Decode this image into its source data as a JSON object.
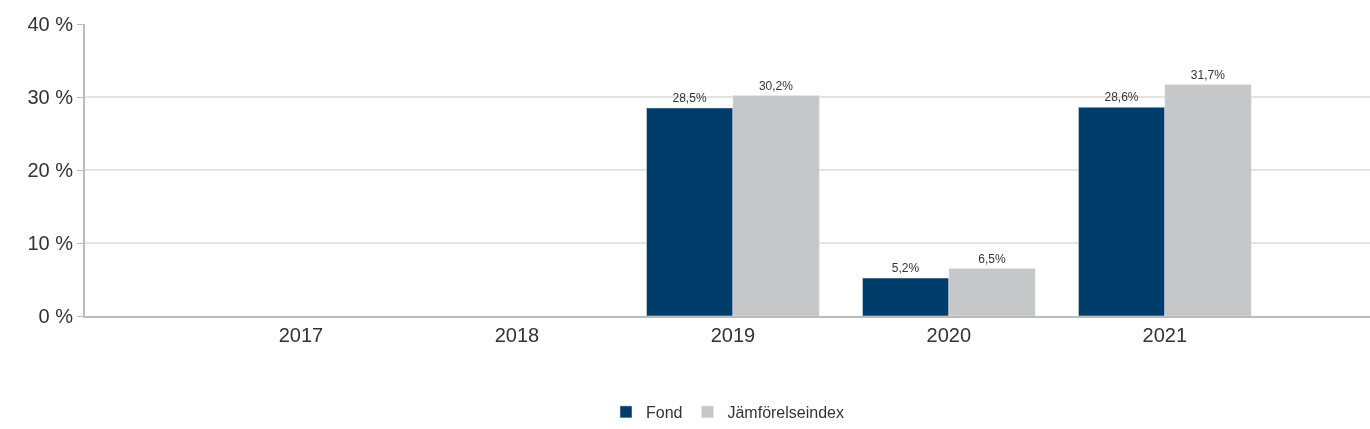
{
  "chart_data": {
    "type": "bar",
    "categories": [
      "2017",
      "2018",
      "2019",
      "2020",
      "2021"
    ],
    "series": [
      {
        "name": "Fond",
        "color": "#003d6b",
        "values": [
          null,
          null,
          28.5,
          5.2,
          28.6
        ],
        "value_labels": [
          null,
          null,
          "28,5%",
          "5,2%",
          "28,6%"
        ]
      },
      {
        "name": "Jämförelseindex",
        "color": "#c6c7c9",
        "values": [
          null,
          null,
          30.2,
          6.5,
          31.7
        ],
        "value_labels": [
          null,
          null,
          "30,2%",
          "6,5%",
          "31,7%"
        ]
      }
    ],
    "ylim": [
      0,
      40
    ],
    "yticks": [
      {
        "value": 0,
        "label": "0 %"
      },
      {
        "value": 10,
        "label": "10 %"
      },
      {
        "value": 20,
        "label": "20 %"
      },
      {
        "value": 30,
        "label": "30 %"
      },
      {
        "value": 40,
        "label": "40 %"
      }
    ],
    "grid": "y",
    "legend": "bottom"
  }
}
